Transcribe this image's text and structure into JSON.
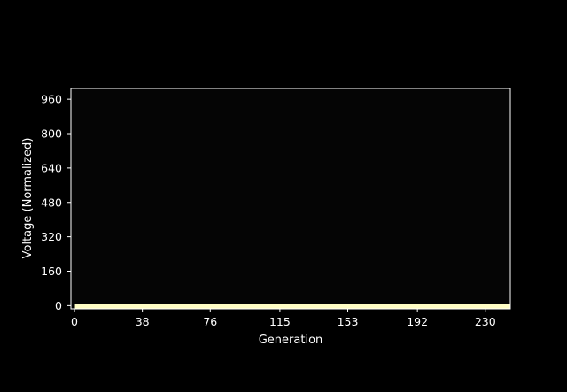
{
  "chart_data": {
    "type": "area",
    "xlabel": "Generation",
    "ylabel": "Voltage (Normalized)",
    "x_ticks": [
      0,
      38,
      76,
      115,
      153,
      192,
      230
    ],
    "y_ticks": [
      0,
      160,
      320,
      480,
      640,
      800,
      960
    ],
    "xlim": [
      -2,
      244
    ],
    "ylim": [
      -15,
      1010
    ],
    "grid": false,
    "colors": {
      "background": "#000000",
      "plot_background": "#050505",
      "frame": "#ffffff",
      "fill": "#fffdc4",
      "text": "#ffffff"
    },
    "series": [
      {
        "x": [
          0,
          244
        ],
        "y": [
          6,
          6
        ]
      }
    ]
  }
}
